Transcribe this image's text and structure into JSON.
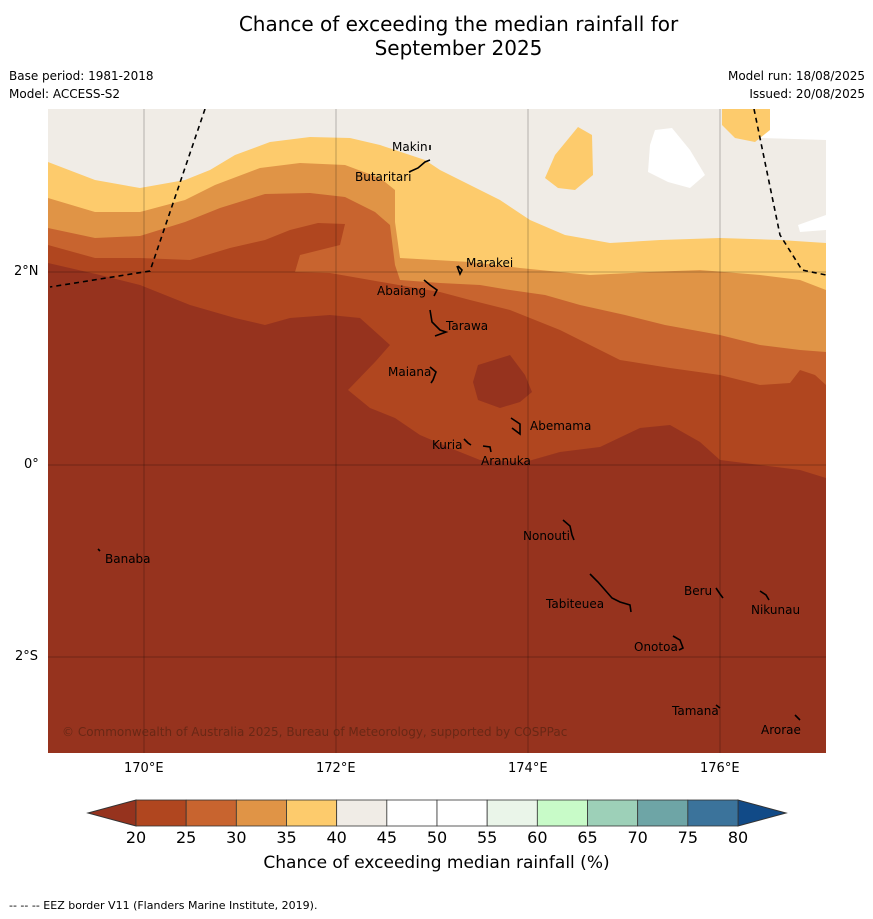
{
  "header": {
    "title_line1": "Chance of exceeding the median rainfall for",
    "title_line2": "September 2025",
    "base_period": "Base period: 1981-2018",
    "model": "Model: ACCESS-S2",
    "model_run": "Model run: 18/08/2025",
    "issued": "Issued: 20/08/2025"
  },
  "map": {
    "lat_labels": [
      "2°N",
      "0°",
      "2°S"
    ],
    "lon_labels": [
      "170°E",
      "172°E",
      "174°E",
      "176°E"
    ],
    "places": {
      "makin": "Makin",
      "butaritari": "Butaritari",
      "marakei": "Marakei",
      "abaiang": "Abaiang",
      "tarawa": "Tarawa",
      "maiana": "Maiana",
      "abemama": "Abemama",
      "kuria": "Kuria",
      "aranuka": "Aranuka",
      "nonouti": "Nonouti",
      "banaba": "Banaba",
      "beru": "Beru",
      "nikunau": "Nikunau",
      "tabiteuea": "Tabiteuea",
      "onotoa": "Onotoa",
      "tamana": "Tamana",
      "arorae": "Arorae"
    },
    "copyright": "© Commonwealth of Australia 2025, Bureau of Meteorology, supported by COSPPac"
  },
  "colorbar": {
    "title": "Chance of exceeding median rainfall (%)",
    "ticks": [
      "20",
      "25",
      "30",
      "35",
      "40",
      "45",
      "50",
      "55",
      "60",
      "65",
      "70",
      "75",
      "80"
    ],
    "colors": [
      "#b0461f",
      "#c8642f",
      "#e09446",
      "#fdcb6c",
      "#f0ece6",
      "#ffffff",
      "#ffffff",
      "#eaf5e9",
      "#c8fbc8",
      "#9dd0b8",
      "#6ea5a6",
      "#3b739b"
    ],
    "low_extend_color": "#96331e",
    "high_extend_color": "#114a87"
  },
  "footer": {
    "eez_note": "--  --  -- EEZ border V11 (Flanders Marine Institute, 2019)."
  }
}
